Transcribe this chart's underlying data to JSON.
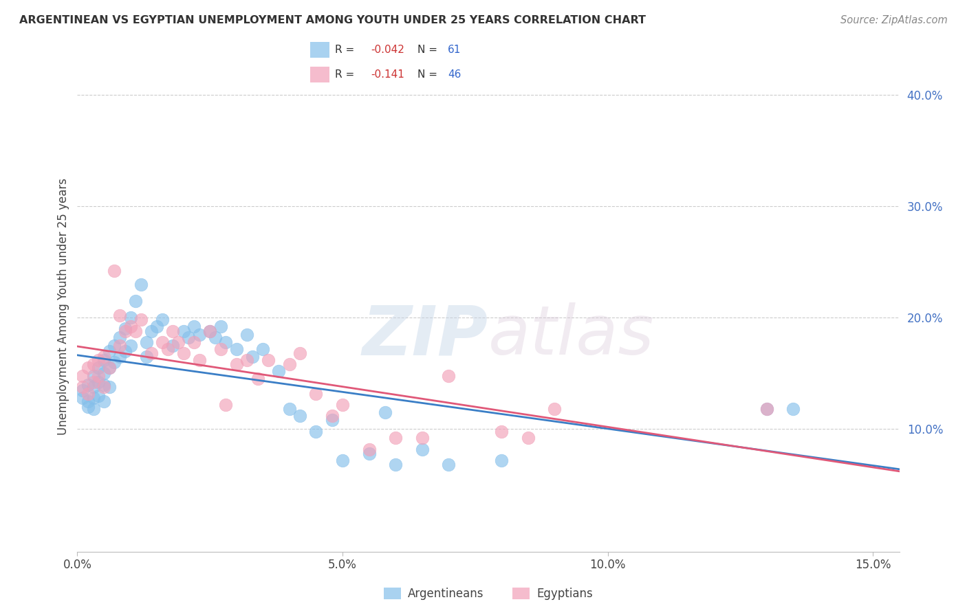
{
  "title": "ARGENTINEAN VS EGYPTIAN UNEMPLOYMENT AMONG YOUTH UNDER 25 YEARS CORRELATION CHART",
  "source": "Source: ZipAtlas.com",
  "ylabel": "Unemployment Among Youth under 25 years",
  "xlabel_ticks": [
    "0.0%",
    "5.0%",
    "10.0%",
    "15.0%"
  ],
  "xlabel_vals": [
    0.0,
    0.05,
    0.1,
    0.15
  ],
  "ylabel_ticks": [
    "10.0%",
    "20.0%",
    "30.0%",
    "40.0%"
  ],
  "ylabel_vals": [
    0.1,
    0.2,
    0.3,
    0.4
  ],
  "xlim": [
    0.0,
    0.155
  ],
  "ylim": [
    -0.01,
    0.43
  ],
  "argentinean_color": "#85BFEA",
  "egyptian_color": "#F2A0B8",
  "argentinean_line_color": "#3A7EC6",
  "egyptian_line_color": "#E05878",
  "R_arg": -0.042,
  "N_arg": 61,
  "R_egy": -0.141,
  "N_egy": 46,
  "watermark_zip": "ZIP",
  "watermark_atlas": "atlas",
  "legend_label_arg": "Argentineans",
  "legend_label_egy": "Egyptians",
  "arg_x": [
    0.001,
    0.001,
    0.002,
    0.002,
    0.002,
    0.003,
    0.003,
    0.003,
    0.003,
    0.004,
    0.004,
    0.004,
    0.005,
    0.005,
    0.005,
    0.005,
    0.006,
    0.006,
    0.006,
    0.007,
    0.007,
    0.008,
    0.008,
    0.009,
    0.009,
    0.01,
    0.01,
    0.011,
    0.012,
    0.013,
    0.013,
    0.014,
    0.015,
    0.016,
    0.018,
    0.02,
    0.021,
    0.022,
    0.023,
    0.025,
    0.026,
    0.027,
    0.028,
    0.03,
    0.032,
    0.033,
    0.035,
    0.038,
    0.04,
    0.042,
    0.045,
    0.048,
    0.05,
    0.055,
    0.058,
    0.06,
    0.065,
    0.07,
    0.08,
    0.13,
    0.135
  ],
  "arg_y": [
    0.135,
    0.128,
    0.14,
    0.125,
    0.12,
    0.148,
    0.138,
    0.128,
    0.118,
    0.155,
    0.142,
    0.13,
    0.162,
    0.15,
    0.14,
    0.125,
    0.17,
    0.155,
    0.138,
    0.175,
    0.16,
    0.182,
    0.165,
    0.19,
    0.17,
    0.2,
    0.175,
    0.215,
    0.23,
    0.178,
    0.165,
    0.188,
    0.192,
    0.198,
    0.175,
    0.188,
    0.182,
    0.192,
    0.185,
    0.188,
    0.182,
    0.192,
    0.178,
    0.172,
    0.185,
    0.165,
    0.172,
    0.152,
    0.118,
    0.112,
    0.098,
    0.108,
    0.072,
    0.078,
    0.115,
    0.068,
    0.082,
    0.068,
    0.072,
    0.118,
    0.118
  ],
  "egy_x": [
    0.001,
    0.001,
    0.002,
    0.002,
    0.003,
    0.003,
    0.004,
    0.004,
    0.005,
    0.005,
    0.006,
    0.007,
    0.008,
    0.008,
    0.009,
    0.01,
    0.011,
    0.012,
    0.014,
    0.016,
    0.017,
    0.018,
    0.019,
    0.02,
    0.022,
    0.023,
    0.025,
    0.027,
    0.028,
    0.03,
    0.032,
    0.034,
    0.036,
    0.04,
    0.042,
    0.045,
    0.048,
    0.05,
    0.055,
    0.06,
    0.065,
    0.07,
    0.08,
    0.085,
    0.09,
    0.13
  ],
  "egy_y": [
    0.148,
    0.138,
    0.155,
    0.132,
    0.158,
    0.142,
    0.162,
    0.148,
    0.165,
    0.138,
    0.155,
    0.242,
    0.202,
    0.175,
    0.188,
    0.192,
    0.188,
    0.198,
    0.168,
    0.178,
    0.172,
    0.188,
    0.178,
    0.168,
    0.178,
    0.162,
    0.188,
    0.172,
    0.122,
    0.158,
    0.162,
    0.145,
    0.162,
    0.158,
    0.168,
    0.132,
    0.112,
    0.122,
    0.082,
    0.092,
    0.092,
    0.148,
    0.098,
    0.092,
    0.118,
    0.118
  ]
}
